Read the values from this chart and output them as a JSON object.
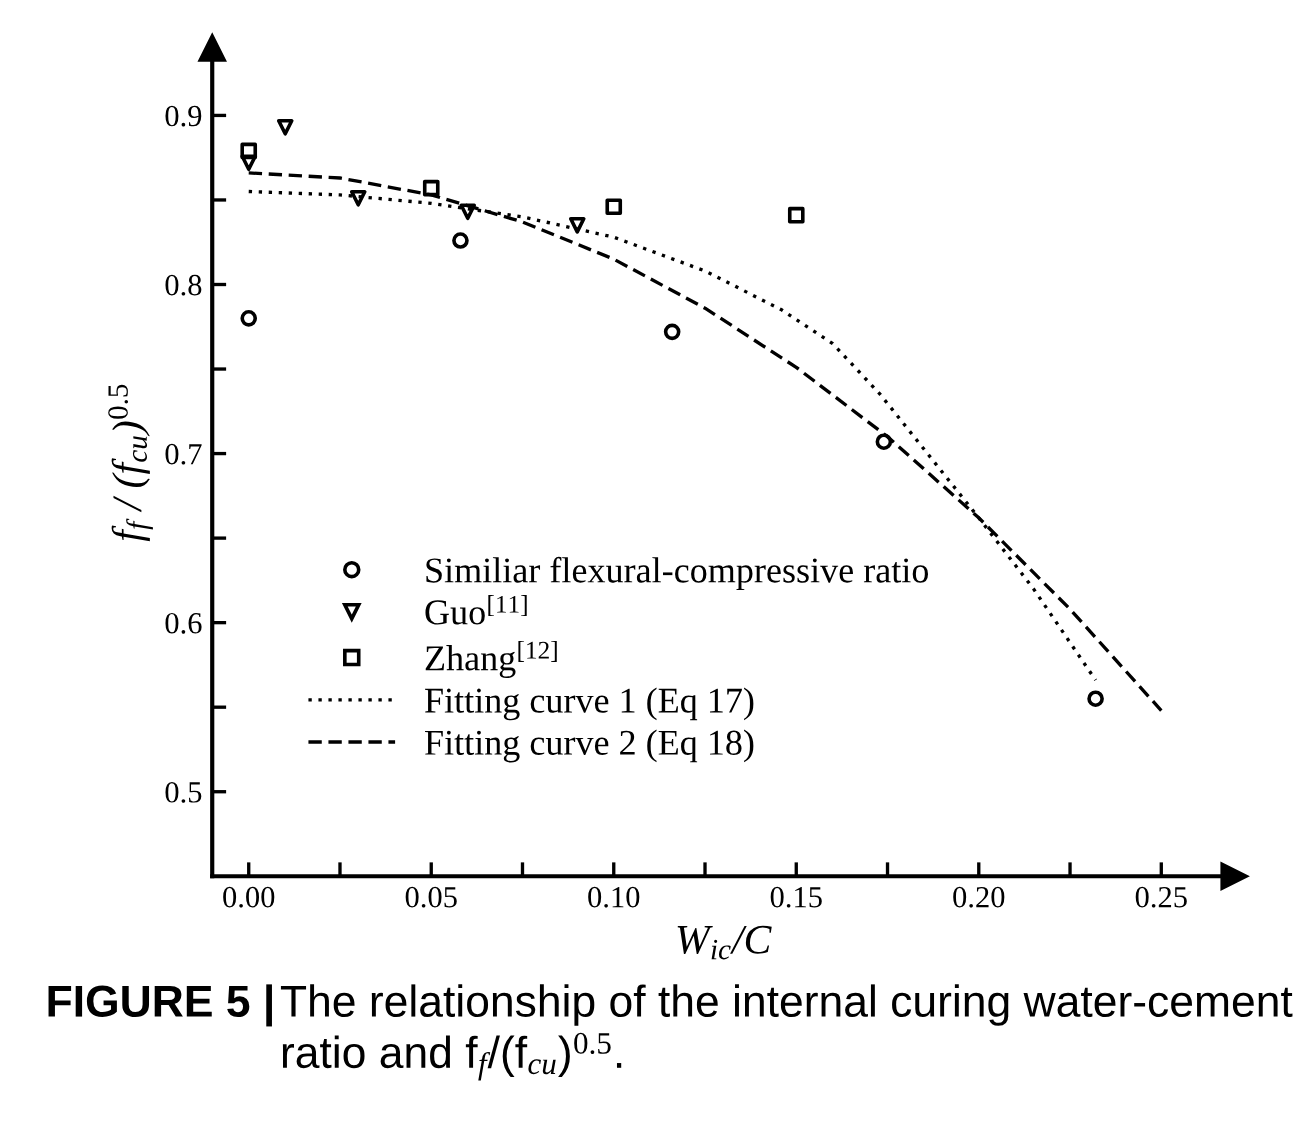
{
  "chart_data": {
    "type": "scatter",
    "xlabel": "W$_{ic}$/C",
    "ylabel": "f$_{f}$ / (f$_{cu}$)$^{0.5}$",
    "xlim": [
      -0.01,
      0.27
    ],
    "ylim": [
      0.45,
      0.94
    ],
    "xticks": [
      {
        "value": 0.0,
        "label": "0.00"
      },
      {
        "value": 0.025,
        "label": null
      },
      0.05,
      {
        "value": 0.075,
        "label": null
      },
      {
        "value": 0.1,
        "label": "0.10"
      },
      {
        "value": 0.125,
        "label": null
      },
      0.15,
      {
        "value": 0.175,
        "label": null
      },
      {
        "value": 0.2,
        "label": "0.20"
      },
      {
        "value": 0.225,
        "label": null
      },
      0.25
    ],
    "yticks": [
      0.5,
      {
        "value": 0.55,
        "label": null
      },
      0.6,
      {
        "value": 0.65,
        "label": null
      },
      0.7,
      {
        "value": 0.75,
        "label": null
      },
      0.8,
      {
        "value": 0.85,
        "label": null
      },
      0.9
    ],
    "grid": false,
    "legend": "bottom left",
    "series": [
      {
        "name": "Similiar flexural-compressive ratio",
        "marker": "circle",
        "color": "#000000",
        "x": [
          0.0,
          0.058,
          0.116,
          0.174,
          0.232
        ],
        "values": [
          0.78,
          0.826,
          0.772,
          0.707,
          0.555
        ]
      },
      {
        "name": "Guo$^{[11]}$",
        "marker": "triangle",
        "color": "#000000",
        "x": [
          0.0,
          0.01,
          0.03,
          0.06,
          0.09
        ],
        "values": [
          0.872,
          0.893,
          0.851,
          0.843,
          0.835
        ]
      },
      {
        "name": "Zhang$^{[12]}$",
        "marker": "square",
        "color": "#000000",
        "x": [
          0.0,
          0.05,
          0.1,
          0.15
        ],
        "values": [
          0.879,
          0.857,
          0.846,
          0.841
        ]
      },
      {
        "name": "Fitting curve 1 (Eq 17)",
        "type": "line",
        "line_style": "dotted",
        "color": "#000000",
        "x": [
          0.0,
          0.025,
          0.05,
          0.075,
          0.1,
          0.125,
          0.146,
          0.16,
          0.173,
          0.2,
          0.215,
          0.232
        ],
        "values": [
          0.855,
          0.853,
          0.848,
          0.84,
          0.828,
          0.808,
          0.785,
          0.765,
          0.735,
          0.662,
          0.62,
          0.566
        ]
      },
      {
        "name": "Fitting curve 2 (Eq 18)",
        "type": "line",
        "line_style": "dashed",
        "color": "#000000",
        "x": [
          0.0,
          0.025,
          0.05,
          0.075,
          0.1,
          0.125,
          0.15,
          0.175,
          0.2,
          0.225,
          0.25
        ],
        "values": [
          0.866,
          0.863,
          0.853,
          0.837,
          0.815,
          0.786,
          0.751,
          0.71,
          0.662,
          0.608,
          0.548
        ]
      }
    ],
    "annotations": [
      "FIGURE 5 |",
      "The relationship of the internal curing water-cement ratio and f$_{f}$/(f$_{cu}$)$^{0.5}$."
    ]
  }
}
